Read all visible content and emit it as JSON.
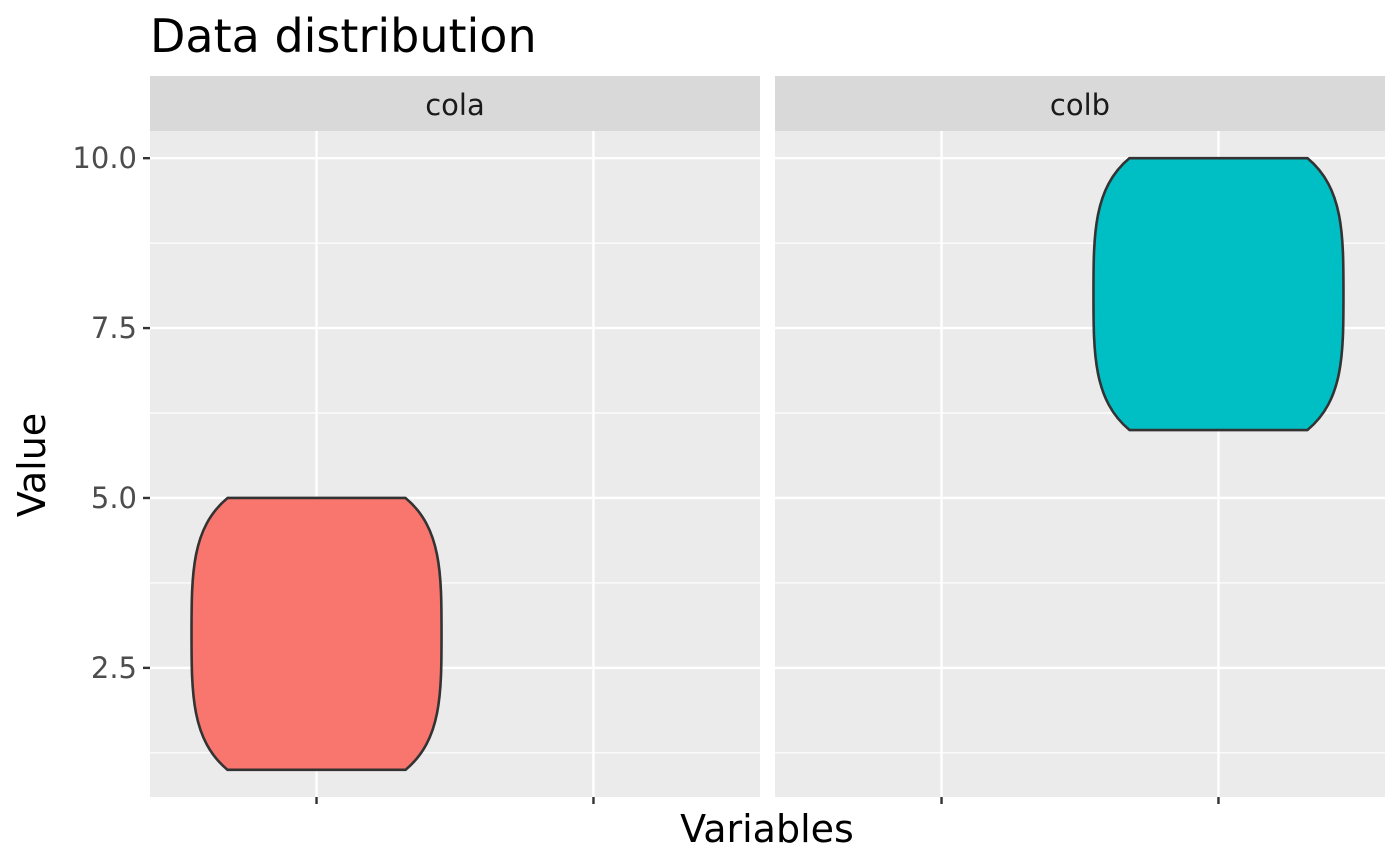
{
  "chart_data": {
    "type": "violin",
    "title": "Data distribution",
    "xlabel": "Variables",
    "ylabel": "Value",
    "ylim": [
      0.6,
      10.4
    ],
    "y_ticks": [
      2.5,
      5.0,
      7.5,
      10.0
    ],
    "y_tick_labels": [
      "2.5",
      "5.0",
      "7.5",
      "10.0"
    ],
    "x_tick_labels": [
      "",
      ""
    ],
    "facets": [
      "cola",
      "colb"
    ],
    "grid": true,
    "legend": "none",
    "series": [
      {
        "facet": "cola",
        "x_position": 1,
        "min": 1,
        "max": 5,
        "widest_at": 3,
        "color": "#F8766D"
      },
      {
        "facet": "colb",
        "x_position": 2,
        "min": 6,
        "max": 10,
        "widest_at": 8,
        "color": "#00BFC4"
      }
    ]
  }
}
